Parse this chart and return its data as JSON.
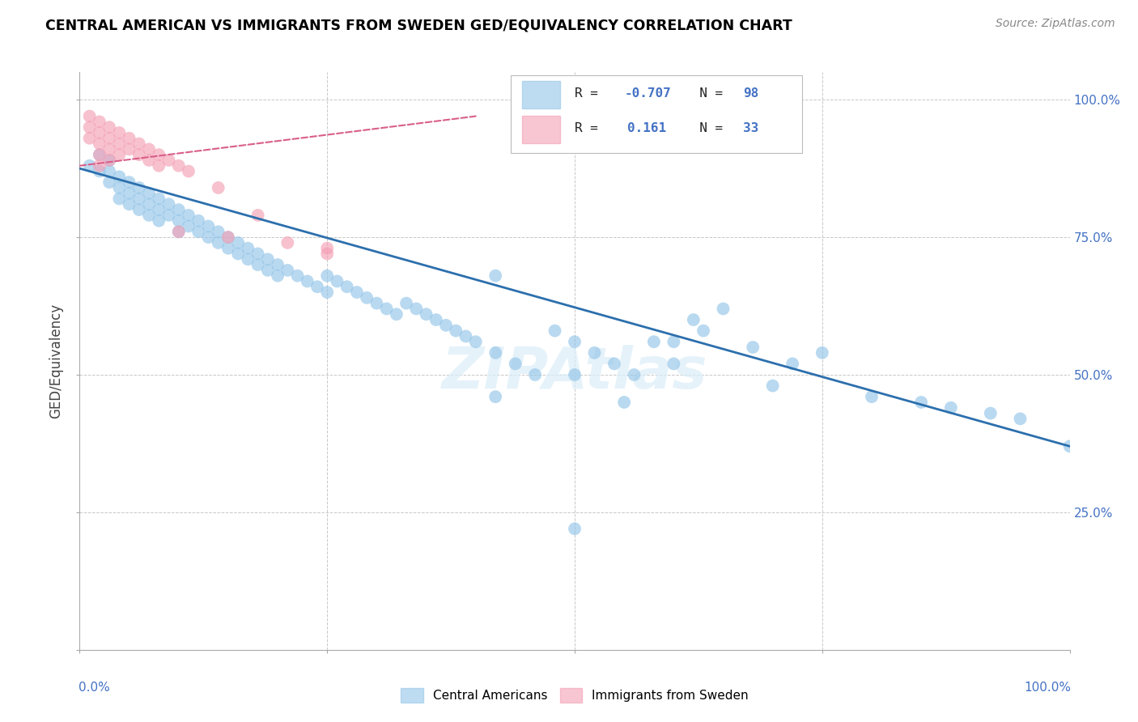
{
  "title": "CENTRAL AMERICAN VS IMMIGRANTS FROM SWEDEN GED/EQUIVALENCY CORRELATION CHART",
  "source": "Source: ZipAtlas.com",
  "ylabel": "GED/Equivalency",
  "legend_labels": [
    "Central Americans",
    "Immigrants from Sweden"
  ],
  "blue_R": -0.707,
  "blue_N": 98,
  "pink_R": 0.161,
  "pink_N": 33,
  "blue_color": "#94c5e8",
  "pink_color": "#f4a0b5",
  "blue_line_color": "#2c6fad",
  "pink_line_color": "#d95f8a",
  "watermark": "ZIPAtlas",
  "blue_scatter_x": [
    0.01,
    0.02,
    0.02,
    0.03,
    0.03,
    0.03,
    0.04,
    0.04,
    0.04,
    0.05,
    0.05,
    0.05,
    0.06,
    0.06,
    0.06,
    0.07,
    0.07,
    0.07,
    0.08,
    0.08,
    0.08,
    0.09,
    0.09,
    0.1,
    0.1,
    0.1,
    0.11,
    0.11,
    0.12,
    0.12,
    0.13,
    0.13,
    0.14,
    0.14,
    0.15,
    0.15,
    0.16,
    0.16,
    0.17,
    0.17,
    0.18,
    0.18,
    0.19,
    0.19,
    0.2,
    0.2,
    0.21,
    0.22,
    0.23,
    0.24,
    0.25,
    0.25,
    0.26,
    0.27,
    0.28,
    0.29,
    0.3,
    0.31,
    0.32,
    0.33,
    0.34,
    0.35,
    0.36,
    0.37,
    0.38,
    0.39,
    0.4,
    0.42,
    0.44,
    0.46,
    0.48,
    0.5,
    0.52,
    0.54,
    0.56,
    0.6,
    0.63,
    0.65,
    0.68,
    0.72,
    0.75,
    0.8,
    0.85,
    0.88,
    0.92,
    0.95,
    1.0,
    0.42,
    0.5,
    0.58,
    0.62,
    0.42,
    0.55,
    0.6,
    0.7,
    0.5
  ],
  "blue_scatter_y": [
    0.88,
    0.87,
    0.9,
    0.89,
    0.87,
    0.85,
    0.86,
    0.84,
    0.82,
    0.85,
    0.83,
    0.81,
    0.84,
    0.82,
    0.8,
    0.83,
    0.81,
    0.79,
    0.82,
    0.8,
    0.78,
    0.81,
    0.79,
    0.8,
    0.78,
    0.76,
    0.79,
    0.77,
    0.78,
    0.76,
    0.77,
    0.75,
    0.76,
    0.74,
    0.75,
    0.73,
    0.74,
    0.72,
    0.73,
    0.71,
    0.72,
    0.7,
    0.71,
    0.69,
    0.7,
    0.68,
    0.69,
    0.68,
    0.67,
    0.66,
    0.65,
    0.68,
    0.67,
    0.66,
    0.65,
    0.64,
    0.63,
    0.62,
    0.61,
    0.63,
    0.62,
    0.61,
    0.6,
    0.59,
    0.58,
    0.57,
    0.56,
    0.54,
    0.52,
    0.5,
    0.58,
    0.56,
    0.54,
    0.52,
    0.5,
    0.56,
    0.58,
    0.62,
    0.55,
    0.52,
    0.54,
    0.46,
    0.45,
    0.44,
    0.43,
    0.42,
    0.37,
    0.68,
    0.5,
    0.56,
    0.6,
    0.46,
    0.45,
    0.52,
    0.48,
    0.22
  ],
  "pink_scatter_x": [
    0.01,
    0.01,
    0.01,
    0.02,
    0.02,
    0.02,
    0.02,
    0.02,
    0.03,
    0.03,
    0.03,
    0.03,
    0.04,
    0.04,
    0.04,
    0.05,
    0.05,
    0.06,
    0.06,
    0.07,
    0.07,
    0.08,
    0.08,
    0.09,
    0.1,
    0.11,
    0.14,
    0.18,
    0.21,
    0.25,
    0.1,
    0.15,
    0.25
  ],
  "pink_scatter_y": [
    0.97,
    0.95,
    0.93,
    0.96,
    0.94,
    0.92,
    0.9,
    0.88,
    0.95,
    0.93,
    0.91,
    0.89,
    0.94,
    0.92,
    0.9,
    0.93,
    0.91,
    0.92,
    0.9,
    0.91,
    0.89,
    0.9,
    0.88,
    0.89,
    0.88,
    0.87,
    0.84,
    0.79,
    0.74,
    0.73,
    0.76,
    0.75,
    0.72
  ],
  "blue_trendline_x": [
    0.0,
    1.0
  ],
  "blue_trendline_y": [
    0.875,
    0.37
  ],
  "pink_trendline_x": [
    0.0,
    0.4
  ],
  "pink_trendline_y": [
    0.88,
    0.97
  ],
  "xlim": [
    0,
    1.0
  ],
  "ylim": [
    0.0,
    1.05
  ],
  "ytick_positions": [
    0.0,
    0.25,
    0.5,
    0.75,
    1.0
  ],
  "ytick_labels": [
    "",
    "25.0%",
    "50.0%",
    "75.0%",
    "100.0%"
  ],
  "xtick_positions": [
    0.0,
    0.25,
    0.5,
    0.75,
    1.0
  ],
  "xtick_labels_bottom": [
    "0.0%",
    "",
    "",
    "",
    "100.0%"
  ]
}
